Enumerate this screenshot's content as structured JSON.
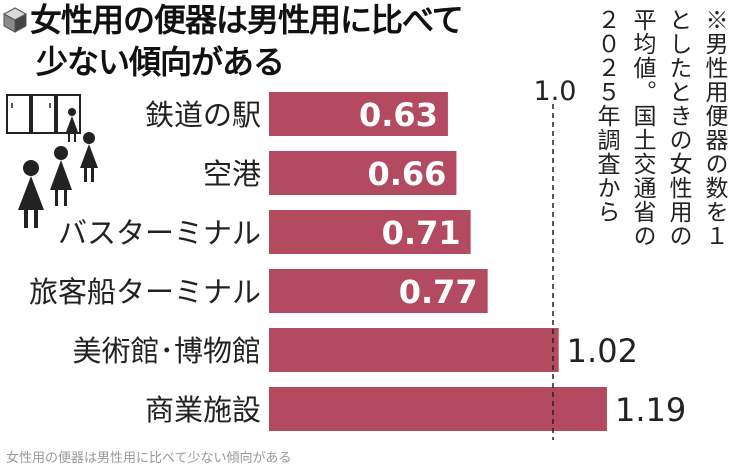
{
  "title": {
    "line1": "女性用の便器は男性用に比べて",
    "line2": "少ない傾向がある"
  },
  "note": {
    "col1": "※男性用便器の数を１",
    "col2": "としたときの女性用の",
    "col3": "平均値。国土交通省の",
    "col4": "２０２５年調査から"
  },
  "caption": "女性用の便器は男性用に比べて少ない傾向がある",
  "colors": {
    "bar": "#b34a60",
    "label_inside": "#ffffff",
    "label_outside": "#222222"
  },
  "icons": [
    "cube-icon",
    "restroom-doors-icon",
    "women-figures-icon"
  ],
  "chart_data": {
    "type": "bar",
    "orientation": "horizontal",
    "categories": [
      "鉄道の駅",
      "空港",
      "バスターミナル",
      "旅客船ターミナル",
      "美術館･博物館",
      "商業施設"
    ],
    "values": [
      0.63,
      0.66,
      0.71,
      0.77,
      1.02,
      1.19
    ],
    "value_labels": [
      "0.63",
      "0.66",
      "0.71",
      "0.77",
      "1.02",
      "1.19"
    ],
    "reference": {
      "value": 1.0,
      "label": "1.0",
      "style": "dashed"
    },
    "xlim": [
      0,
      1.2
    ],
    "grid": false,
    "legend": "none"
  }
}
